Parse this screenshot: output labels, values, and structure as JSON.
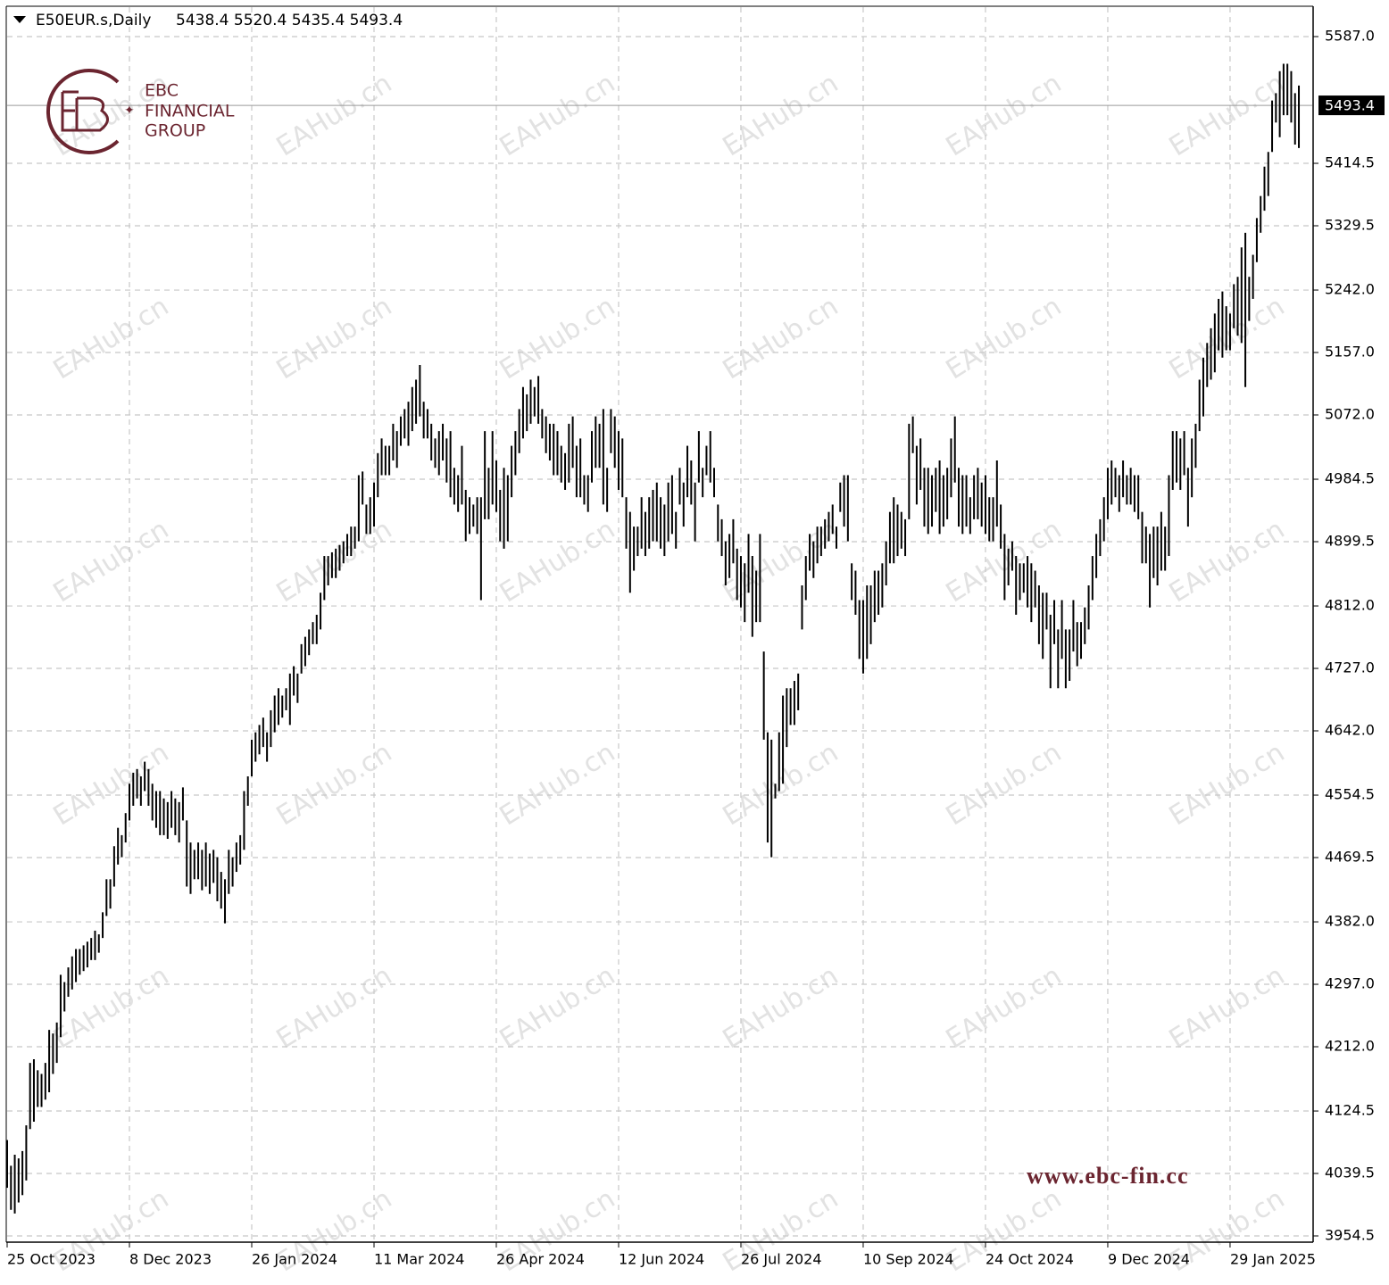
{
  "chart_data": {
    "type": "ohlc",
    "symbol": "E50EUR.s,Daily",
    "last_ohlc": [
      5438.4,
      5520.4,
      5435.4,
      5493.4
    ],
    "brand": {
      "name": "EBC",
      "line1": "FINANCIAL",
      "line2": "GROUP",
      "url": "www.ebc-fin.cc"
    },
    "watermark": "EAHub.cn",
    "color": "#000000",
    "grid": true,
    "xlim": [
      0,
      341.5
    ],
    "ylim": [
      3947.2,
      5627.1
    ],
    "xticks": [
      {
        "value": 0,
        "label": "25 Oct 2023"
      },
      {
        "value": 32,
        "label": "8 Dec 2023"
      },
      {
        "value": 64,
        "label": "26 Jan 2024"
      },
      {
        "value": 96,
        "label": "11 Mar 2024"
      },
      {
        "value": 128,
        "label": "26 Apr 2024"
      },
      {
        "value": 160,
        "label": "12 Jun 2024"
      },
      {
        "value": 192,
        "label": "26 Jul 2024"
      },
      {
        "value": 224,
        "label": "10 Sep 2024"
      },
      {
        "value": 256,
        "label": "24 Oct 2024"
      },
      {
        "value": 288,
        "label": "9 Dec 2024"
      },
      {
        "value": 320,
        "label": "29 Jan 2025"
      }
    ],
    "yticks": [
      {
        "value": 5587,
        "label": "5587.0"
      },
      5414.5,
      5329.5,
      {
        "value": 5242,
        "label": "5242.0"
      },
      {
        "value": 5157,
        "label": "5157.0"
      },
      {
        "value": 5072,
        "label": "5072.0"
      },
      4984.5,
      4899.5,
      {
        "value": 4812,
        "label": "4812.0"
      },
      {
        "value": 4727,
        "label": "4727.0"
      },
      {
        "value": 4642,
        "label": "4642.0"
      },
      4554.5,
      4469.5,
      {
        "value": 4382,
        "label": "4382.0"
      },
      {
        "value": 4297,
        "label": "4297.0"
      },
      {
        "value": 4212,
        "label": "4212.0"
      },
      4124.5,
      4039.5,
      3954.5
    ],
    "series": [
      {
        "name": "High",
        "values": [
          4085,
          4050,
          4065,
          4060,
          4070,
          4105,
          4190,
          4195,
          4180,
          4175,
          4190,
          4235,
          4230,
          4245,
          4310,
          4300,
          4320,
          4335,
          4345,
          4345,
          4350,
          4355,
          4360,
          4370,
          4365,
          4395,
          4440,
          4440,
          4485,
          4510,
          4500,
          4530,
          4570,
          4585,
          4590,
          4580,
          4600,
          4590,
          4570,
          4560,
          4560,
          4550,
          4545,
          4560,
          4550,
          4545,
          4565,
          4520,
          4490,
          4480,
          4490,
          4480,
          4490,
          4475,
          4480,
          4470,
          4450,
          4440,
          4480,
          4470,
          4490,
          4500,
          4560,
          4580,
          4630,
          4640,
          4650,
          4660,
          4640,
          4670,
          4690,
          4700,
          4690,
          4700,
          4720,
          4730,
          4720,
          4760,
          4770,
          4780,
          4790,
          4800,
          4830,
          4880,
          4880,
          4885,
          4890,
          4895,
          4900,
          4910,
          4920,
          4920,
          4990,
          4995,
          4950,
          4960,
          4980,
          5020,
          5040,
          5030,
          5030,
          5060,
          5050,
          5070,
          5080,
          5090,
          5110,
          5120,
          5140,
          5090,
          5080,
          5060,
          5040,
          5050,
          5060,
          5040,
          5050,
          5000,
          4990,
          5030,
          4970,
          4960,
          4950,
          4960,
          4960,
          5050,
          5000,
          5050,
          5010,
          4970,
          5000,
          4990,
          5030,
          5050,
          5080,
          5110,
          5100,
          5120,
          5110,
          5125,
          5080,
          5070,
          5060,
          5060,
          5050,
          5030,
          5020,
          5060,
          5070,
          5030,
          5040,
          4990,
          4990,
          5050,
          5070,
          5060,
          5080,
          5000,
          5080,
          5070,
          5050,
          5040,
          4960,
          4940,
          4920,
          4920,
          4960,
          4940,
          4960,
          4970,
          4980,
          4960,
          4950,
          4980,
          4990,
          4940,
          5000,
          4980,
          5030,
          5010,
          4980,
          5050,
          5000,
          5030,
          5050,
          5000,
          4950,
          4930,
          4900,
          4910,
          4930,
          4890,
          4880,
          4870,
          4910,
          4880,
          4860,
          4910,
          4750,
          4640,
          4630,
          4570,
          4640,
          4690,
          4700,
          4700,
          4710,
          4720,
          4840,
          4880,
          4910,
          4900,
          4920,
          4920,
          4930,
          4940,
          4950,
          4920,
          4980,
          4990,
          4990,
          4870,
          4860,
          4820,
          4820,
          4840,
          4840,
          4860,
          4860,
          4870,
          4900,
          4940,
          4960,
          4950,
          4940,
          4930,
          5060,
          5070,
          5030,
          5040,
          5000,
          5000,
          4990,
          5000,
          5010,
          4990,
          5000,
          5040,
          5070,
          5000,
          4990,
          4990,
          4960,
          4990,
          5000,
          4980,
          4990,
          4960,
          4960,
          5010,
          4950,
          4910,
          4890,
          4900,
          4880,
          4870,
          4870,
          4880,
          4870,
          4860,
          4840,
          4830,
          4830,
          4800,
          4820,
          4780,
          4820,
          4780,
          4780,
          4820,
          4790,
          4790,
          4810,
          4840,
          4880,
          4910,
          4930,
          4960,
          5000,
          5010,
          5000,
          4990,
          5010,
          4990,
          5000,
          4990,
          4990,
          4940,
          4920,
          4910,
          4920,
          4920,
          4940,
          4920,
          4990,
          5050,
          5050,
          5040,
          5050,
          5000,
          5040,
          5060,
          5120,
          5150,
          5170,
          5190,
          5210,
          5230,
          5240,
          5220,
          5210,
          5250,
          5260,
          5300,
          5320,
          5260,
          5290,
          5340,
          5370,
          5410,
          5430,
          5500,
          5510,
          5540,
          5550,
          5550,
          5540,
          5510,
          5520.4
        ]
      },
      {
        "name": "Low",
        "values": [
          4020,
          3990,
          3985,
          4000,
          4010,
          4030,
          4100,
          4110,
          4130,
          4130,
          4140,
          4150,
          4175,
          4190,
          4225,
          4260,
          4280,
          4290,
          4300,
          4310,
          4315,
          4320,
          4330,
          4330,
          4340,
          4360,
          4390,
          4400,
          4430,
          4460,
          4470,
          4490,
          4520,
          4540,
          4550,
          4540,
          4560,
          4540,
          4520,
          4510,
          4500,
          4500,
          4495,
          4510,
          4500,
          4490,
          4520,
          4430,
          4420,
          4440,
          4440,
          4425,
          4430,
          4420,
          4435,
          4410,
          4400,
          4380,
          4420,
          4430,
          4450,
          4460,
          4480,
          4540,
          4580,
          4600,
          4610,
          4620,
          4600,
          4620,
          4640,
          4650,
          4660,
          4670,
          4650,
          4690,
          4680,
          4720,
          4730,
          4745,
          4760,
          4760,
          4780,
          4820,
          4840,
          4850,
          4850,
          4860,
          4870,
          4880,
          4880,
          4890,
          4900,
          4950,
          4910,
          4910,
          4920,
          4960,
          4990,
          4990,
          4990,
          5010,
          5000,
          5030,
          5040,
          5030,
          5050,
          5060,
          5070,
          5040,
          5040,
          5010,
          5000,
          4990,
          5010,
          4980,
          4960,
          4950,
          4940,
          4950,
          4900,
          4910,
          4920,
          4910,
          4820,
          4930,
          4930,
          4950,
          4940,
          4900,
          4890,
          4900,
          4960,
          4990,
          5020,
          5040,
          5050,
          5060,
          5070,
          5060,
          5040,
          5020,
          5010,
          4990,
          4990,
          4980,
          4970,
          4980,
          5000,
          4960,
          4960,
          4950,
          4940,
          4980,
          5000,
          5000,
          4950,
          4940,
          5020,
          5000,
          4970,
          4960,
          4890,
          4830,
          4860,
          4880,
          4890,
          4880,
          4890,
          4900,
          4900,
          4890,
          4880,
          4900,
          4910,
          4890,
          4950,
          4920,
          4960,
          4950,
          4900,
          4980,
          4960,
          4990,
          4980,
          4960,
          4900,
          4880,
          4840,
          4850,
          4870,
          4820,
          4810,
          4790,
          4830,
          4770,
          4790,
          4790,
          4630,
          4490,
          4470,
          4550,
          4560,
          4570,
          4620,
          4650,
          4650,
          4670,
          4780,
          4820,
          4860,
          4850,
          4870,
          4880,
          4890,
          4900,
          4910,
          4890,
          4940,
          4920,
          4900,
          4820,
          4800,
          4740,
          4720,
          4740,
          4760,
          4790,
          4800,
          4810,
          4840,
          4870,
          4870,
          4880,
          4890,
          4880,
          4930,
          5020,
          4950,
          4970,
          4920,
          4910,
          4920,
          4940,
          4910,
          4920,
          4930,
          4960,
          4980,
          4920,
          4910,
          4920,
          4910,
          4930,
          4930,
          4920,
          4910,
          4900,
          4900,
          4920,
          4890,
          4820,
          4840,
          4860,
          4800,
          4820,
          4830,
          4810,
          4790,
          4810,
          4760,
          4740,
          4780,
          4700,
          4760,
          4700,
          4740,
          4700,
          4710,
          4750,
          4730,
          4740,
          4760,
          4780,
          4820,
          4850,
          4880,
          4900,
          4930,
          4950,
          4960,
          4940,
          4960,
          4950,
          4950,
          4940,
          4930,
          4870,
          4870,
          4810,
          4850,
          4840,
          4860,
          4860,
          4880,
          4970,
          4980,
          4970,
          4990,
          4920,
          4960,
          5000,
          5050,
          5070,
          5110,
          5120,
          5130,
          5160,
          5150,
          5160,
          5160,
          5190,
          5180,
          5170,
          5110,
          5200,
          5230,
          5280,
          5320,
          5350,
          5370,
          5430,
          5470,
          5450,
          5480,
          5480,
          5470,
          5440,
          5435.4
        ]
      }
    ]
  }
}
